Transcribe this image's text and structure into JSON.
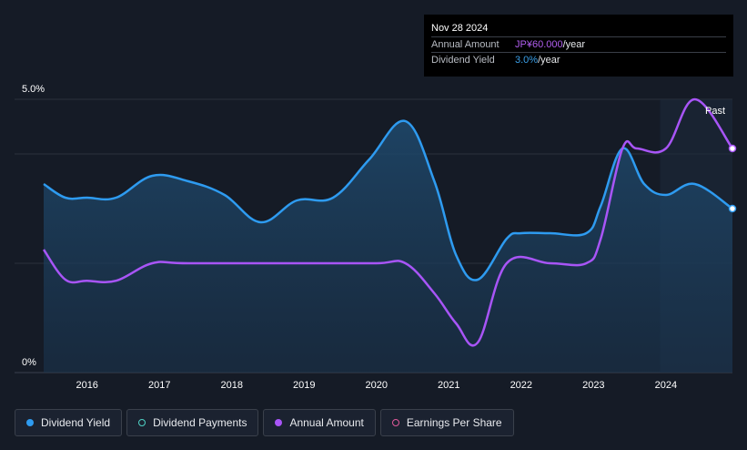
{
  "tooltip": {
    "date": "Nov 28 2024",
    "rows": [
      {
        "label": "Annual Amount",
        "value": "JP¥60.000",
        "unit": "/year",
        "color": "#b15ef0"
      },
      {
        "label": "Dividend Yield",
        "value": "3.0%",
        "unit": "/year",
        "color": "#3a9fe8"
      }
    ]
  },
  "legend": [
    {
      "label": "Dividend Yield",
      "color": "#2e9bf0",
      "filled": true,
      "active": true
    },
    {
      "label": "Dividend Payments",
      "color": "#4fd1c5",
      "filled": false,
      "active": false
    },
    {
      "label": "Annual Amount",
      "color": "#a855f7",
      "filled": true,
      "active": true
    },
    {
      "label": "Earnings Per Share",
      "color": "#e05a9b",
      "filled": false,
      "active": false
    }
  ],
  "chart_data": {
    "type": "line",
    "ylabels": [
      "5.0%",
      "0%"
    ],
    "past_label": "Past",
    "xticks": [
      "2016",
      "2017",
      "2018",
      "2019",
      "2020",
      "2021",
      "2022",
      "2023",
      "2024"
    ],
    "xlim": [
      2015.4,
      2024.92
    ],
    "ylim": [
      0,
      5.0
    ],
    "grid": true,
    "forecast_start": 2023.92,
    "series": [
      {
        "name": "Dividend Yield",
        "color": "#2e9bf0",
        "points": [
          [
            2015.4,
            3.45
          ],
          [
            2015.7,
            3.2
          ],
          [
            2016.0,
            3.2
          ],
          [
            2016.4,
            3.2
          ],
          [
            2016.9,
            3.6
          ],
          [
            2017.4,
            3.5
          ],
          [
            2017.9,
            3.25
          ],
          [
            2018.4,
            2.75
          ],
          [
            2018.9,
            3.15
          ],
          [
            2019.4,
            3.2
          ],
          [
            2019.9,
            3.9
          ],
          [
            2020.4,
            4.6
          ],
          [
            2020.8,
            3.5
          ],
          [
            2021.1,
            2.15
          ],
          [
            2021.4,
            1.7
          ],
          [
            2021.8,
            2.45
          ],
          [
            2022.0,
            2.55
          ],
          [
            2022.4,
            2.55
          ],
          [
            2022.9,
            2.55
          ],
          [
            2023.1,
            3.05
          ],
          [
            2023.4,
            4.1
          ],
          [
            2023.7,
            3.45
          ],
          [
            2024.0,
            3.25
          ],
          [
            2024.4,
            3.45
          ],
          [
            2024.92,
            3.0
          ]
        ]
      },
      {
        "name": "Annual Amount",
        "color": "#a855f7",
        "points": [
          [
            2015.4,
            2.25
          ],
          [
            2015.7,
            1.7
          ],
          [
            2016.0,
            1.68
          ],
          [
            2016.4,
            1.68
          ],
          [
            2016.9,
            2.0
          ],
          [
            2017.4,
            2.0
          ],
          [
            2019.0,
            2.0
          ],
          [
            2020.0,
            2.0
          ],
          [
            2020.4,
            2.0
          ],
          [
            2020.8,
            1.45
          ],
          [
            2021.1,
            0.9
          ],
          [
            2021.4,
            0.55
          ],
          [
            2021.8,
            2.0
          ],
          [
            2022.4,
            2.0
          ],
          [
            2022.9,
            2.0
          ],
          [
            2023.1,
            2.45
          ],
          [
            2023.4,
            4.1
          ],
          [
            2023.6,
            4.1
          ],
          [
            2024.0,
            4.1
          ],
          [
            2024.4,
            5.0
          ],
          [
            2024.92,
            4.1
          ]
        ]
      }
    ]
  }
}
